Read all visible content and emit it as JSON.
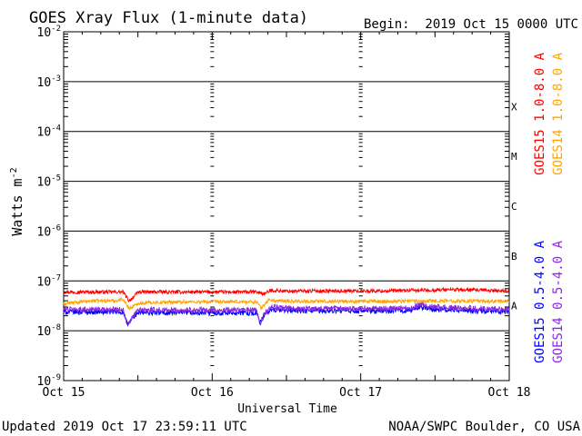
{
  "chart_data": {
    "type": "line",
    "title": "GOES Xray Flux (1-minute data)",
    "begin_label": "Begin:  2019 Oct 15 0000 UTC",
    "xlabel": "Universal Time",
    "ylabel_base": "Watts m",
    "ylabel_exp": "-2",
    "x_categories": [
      "Oct 15",
      "Oct 16",
      "Oct 17",
      "Oct 18"
    ],
    "xlim_days": [
      0,
      3
    ],
    "yscale": "log",
    "ylim": [
      1e-09,
      0.01
    ],
    "y_ticks": [
      {
        "base": "10",
        "exp": "-2"
      },
      {
        "base": "10",
        "exp": "-3"
      },
      {
        "base": "10",
        "exp": "-4"
      },
      {
        "base": "10",
        "exp": "-5"
      },
      {
        "base": "10",
        "exp": "-6"
      },
      {
        "base": "10",
        "exp": "-7"
      },
      {
        "base": "10",
        "exp": "-8"
      },
      {
        "base": "10",
        "exp": "-9"
      }
    ],
    "flare_classes": [
      "X",
      "M",
      "C",
      "B",
      "A"
    ],
    "series": [
      {
        "name": "GOES15 1.0-8.0 A",
        "color": "#ff0000",
        "x": [
          0,
          0.2,
          0.4,
          0.44,
          0.48,
          0.5,
          0.6,
          0.8,
          1.0,
          1.2,
          1.3,
          1.35,
          1.4,
          1.5,
          1.6,
          1.8,
          2.0,
          2.2,
          2.4,
          2.6,
          2.8,
          3.0
        ],
        "y": [
          6e-08,
          6e-08,
          6e-08,
          4e-08,
          5e-08,
          6e-08,
          6e-08,
          6e-08,
          6e-08,
          6e-08,
          6e-08,
          5.5e-08,
          6.5e-08,
          6.2e-08,
          6.3e-08,
          6.3e-08,
          6.3e-08,
          6.3e-08,
          6.5e-08,
          6.7e-08,
          6.5e-08,
          6.3e-08
        ]
      },
      {
        "name": "GOES14 1.0-8.0 A",
        "color": "#ffa500",
        "x": [
          0,
          0.2,
          0.35,
          0.4,
          0.44,
          0.48,
          0.5,
          0.6,
          0.8,
          1.0,
          1.2,
          1.3,
          1.33,
          1.38,
          1.42,
          1.5,
          1.6,
          1.8,
          2.0,
          2.2,
          2.4,
          2.6,
          2.8,
          3.0
        ],
        "y": [
          3.5e-08,
          4e-08,
          4e-08,
          4.4e-08,
          2.8e-08,
          3.2e-08,
          3.6e-08,
          3.7e-08,
          3.8e-08,
          3.8e-08,
          3.8e-08,
          3.8e-08,
          2.8e-08,
          4.2e-08,
          4e-08,
          3.9e-08,
          3.9e-08,
          3.9e-08,
          3.9e-08,
          3.9e-08,
          4e-08,
          4e-08,
          3.9e-08,
          3.9e-08
        ]
      },
      {
        "name": "GOES15 0.5-4.0 A",
        "color": "#0000ff",
        "x": [
          0,
          0.2,
          0.4,
          0.43,
          0.46,
          0.5,
          0.6,
          0.8,
          1.0,
          1.2,
          1.3,
          1.32,
          1.35,
          1.4,
          1.5,
          1.6,
          1.8,
          2.0,
          2.2,
          2.35,
          2.4,
          2.45,
          2.5,
          2.6,
          2.8,
          3.0
        ],
        "y": [
          2.4e-08,
          2.4e-08,
          2.4e-08,
          1.3e-08,
          1.8e-08,
          2.3e-08,
          2.3e-08,
          2.3e-08,
          2.3e-08,
          2.3e-08,
          2.3e-08,
          1.4e-08,
          2e-08,
          2.7e-08,
          2.6e-08,
          2.5e-08,
          2.5e-08,
          2.5e-08,
          2.5e-08,
          2.6e-08,
          3.1e-08,
          2.8e-08,
          2.7e-08,
          2.6e-08,
          2.5e-08,
          2.4e-08
        ]
      },
      {
        "name": "GOES14 0.5-4.0 A",
        "color": "#8a2be2",
        "x": [
          0,
          0.2,
          0.4,
          0.43,
          0.46,
          0.5,
          0.6,
          0.8,
          1.0,
          1.2,
          1.3,
          1.32,
          1.35,
          1.4,
          1.5,
          1.6,
          1.8,
          2.0,
          2.2,
          2.35,
          2.4,
          2.45,
          2.5,
          2.6,
          2.8,
          3.0
        ],
        "y": [
          2.7e-08,
          2.7e-08,
          2.7e-08,
          1.2e-08,
          1.8e-08,
          2.6e-08,
          2.6e-08,
          2.6e-08,
          2.6e-08,
          2.6e-08,
          2.6e-08,
          1.3e-08,
          2.2e-08,
          3e-08,
          2.8e-08,
          2.8e-08,
          2.8e-08,
          2.8e-08,
          2.8e-08,
          2.9e-08,
          3.5e-08,
          3.1e-08,
          3e-08,
          2.9e-08,
          2.8e-08,
          2.7e-08
        ]
      }
    ]
  },
  "footer": {
    "updated": "Updated 2019 Oct 17 23:59:11 UTC",
    "source": "NOAA/SWPC Boulder, CO USA"
  }
}
